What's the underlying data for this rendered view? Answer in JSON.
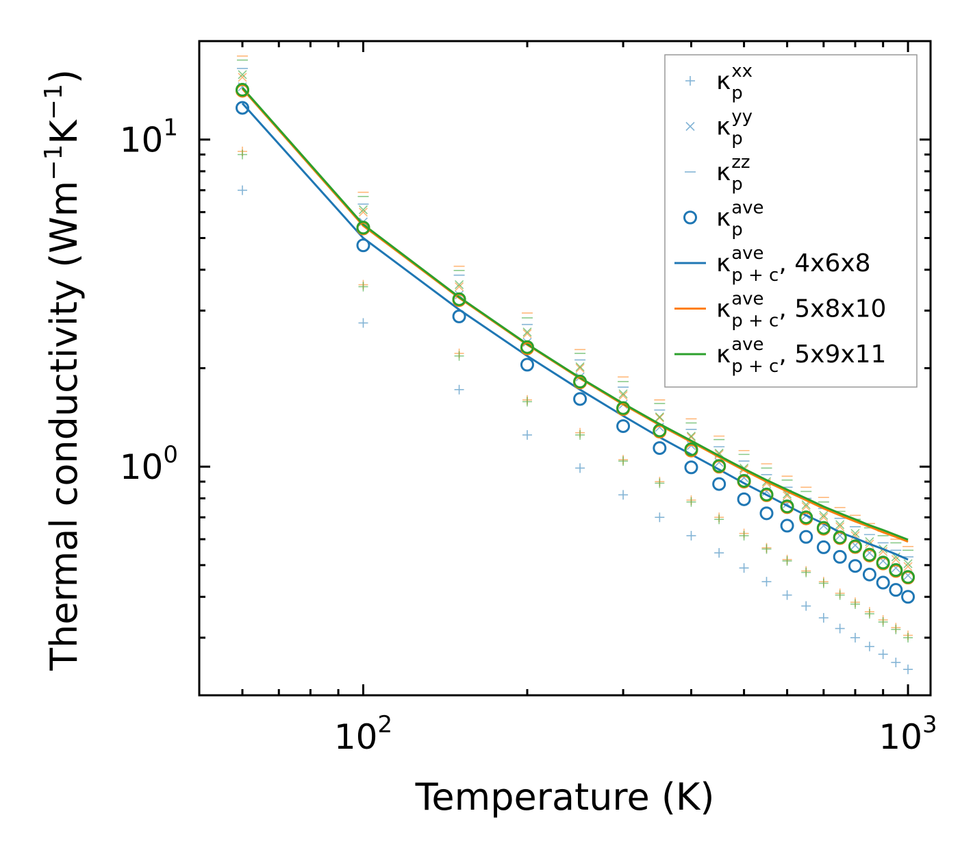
{
  "chart_data": {
    "type": "scatter",
    "title": "",
    "xlabel": "Temperature (K)",
    "ylabel_main": "Thermal conductivity (Wm",
    "ylabel_exp1": "−1",
    "ylabel_mid": "K",
    "ylabel_exp2": "−1",
    "ylabel_close": ")",
    "xscale": "log",
    "yscale": "log",
    "xlim": [
      50,
      1100
    ],
    "ylim": [
      0.2,
      20
    ],
    "xticks": [
      {
        "base": "10",
        "exp": "2",
        "value": 100
      },
      {
        "base": "10",
        "exp": "3",
        "value": 1000
      }
    ],
    "yticks": [
      {
        "base": "10",
        "exp": "0",
        "value": 1
      },
      {
        "base": "10",
        "exp": "1",
        "value": 10
      }
    ],
    "legend_position": "top-right",
    "x": [
      60,
      100,
      150,
      200,
      250,
      300,
      350,
      400,
      450,
      500,
      550,
      600,
      650,
      700,
      750,
      800,
      850,
      900,
      950,
      1000
    ],
    "series": [
      {
        "name": "xx-blue",
        "marker": "+",
        "color": "#1f77b4",
        "values": [
          7.0,
          2.75,
          1.72,
          1.25,
          0.99,
          0.82,
          0.7,
          0.615,
          0.545,
          0.49,
          0.445,
          0.405,
          0.375,
          0.345,
          0.32,
          0.3,
          0.282,
          0.267,
          0.252,
          0.24
        ]
      },
      {
        "name": "xx-orange",
        "marker": "+",
        "color": "#ff7f0e",
        "values": [
          9.2,
          3.6,
          2.22,
          1.6,
          1.27,
          1.05,
          0.9,
          0.79,
          0.7,
          0.625,
          0.565,
          0.52,
          0.48,
          0.445,
          0.41,
          0.385,
          0.36,
          0.34,
          0.322,
          0.305
        ]
      },
      {
        "name": "xx-green",
        "marker": "+",
        "color": "#2ca02c",
        "values": [
          9.0,
          3.55,
          2.18,
          1.58,
          1.25,
          1.04,
          0.89,
          0.78,
          0.69,
          0.615,
          0.56,
          0.515,
          0.475,
          0.44,
          0.405,
          0.38,
          0.355,
          0.335,
          0.318,
          0.3
        ]
      },
      {
        "name": "yy-blue",
        "marker": "x",
        "color": "#1f77b4",
        "values": [
          14.5,
          5.6,
          3.35,
          2.4,
          1.88,
          1.55,
          1.32,
          1.16,
          1.03,
          0.925,
          0.84,
          0.77,
          0.71,
          0.66,
          0.615,
          0.575,
          0.545,
          0.515,
          0.49,
          0.465
        ]
      },
      {
        "name": "yy-orange",
        "marker": "x",
        "color": "#ff7f0e",
        "values": [
          15.5,
          6.0,
          3.55,
          2.55,
          2.0,
          1.65,
          1.41,
          1.23,
          1.09,
          0.98,
          0.89,
          0.815,
          0.755,
          0.7,
          0.655,
          0.615,
          0.58,
          0.55,
          0.52,
          0.495
        ]
      },
      {
        "name": "yy-green",
        "marker": "x",
        "color": "#2ca02c",
        "values": [
          15.8,
          6.1,
          3.6,
          2.58,
          2.02,
          1.67,
          1.42,
          1.24,
          1.1,
          0.99,
          0.9,
          0.825,
          0.765,
          0.71,
          0.665,
          0.625,
          0.59,
          0.56,
          0.53,
          0.505
        ]
      },
      {
        "name": "zz-blue",
        "marker": "_",
        "color": "#1f77b4",
        "values": [
          16.5,
          6.35,
          3.85,
          2.72,
          2.12,
          1.75,
          1.49,
          1.3,
          1.15,
          1.04,
          0.945,
          0.865,
          0.8,
          0.745,
          0.695,
          0.655,
          0.62,
          0.585,
          0.555,
          0.53
        ]
      },
      {
        "name": "zz-orange",
        "marker": "_",
        "color": "#ff7f0e",
        "values": [
          18.0,
          6.9,
          4.1,
          2.95,
          2.28,
          1.88,
          1.6,
          1.4,
          1.24,
          1.12,
          1.02,
          0.935,
          0.865,
          0.805,
          0.75,
          0.71,
          0.67,
          0.635,
          0.6,
          0.57
        ]
      },
      {
        "name": "zz-green",
        "marker": "_",
        "color": "#2ca02c",
        "values": [
          17.5,
          6.7,
          3.98,
          2.85,
          2.22,
          1.82,
          1.56,
          1.36,
          1.21,
          1.09,
          0.99,
          0.91,
          0.84,
          0.78,
          0.73,
          0.69,
          0.65,
          0.615,
          0.585,
          0.555
        ]
      },
      {
        "name": "ave-blue",
        "marker": "o",
        "color": "#1f77b4",
        "values": [
          12.5,
          4.75,
          2.88,
          2.05,
          1.61,
          1.33,
          1.14,
          0.995,
          0.885,
          0.795,
          0.72,
          0.66,
          0.61,
          0.567,
          0.53,
          0.497,
          0.468,
          0.442,
          0.42,
          0.4
        ]
      },
      {
        "name": "ave-orange",
        "marker": "o",
        "color": "#ff7f0e",
        "values": [
          14.1,
          5.35,
          3.23,
          2.3,
          1.81,
          1.5,
          1.28,
          1.12,
          1.0,
          0.9,
          0.818,
          0.752,
          0.695,
          0.646,
          0.605,
          0.568,
          0.535,
          0.506,
          0.48,
          0.458
        ]
      },
      {
        "name": "ave-green",
        "marker": "o",
        "color": "#2ca02c",
        "values": [
          14.2,
          5.38,
          3.25,
          2.32,
          1.82,
          1.51,
          1.29,
          1.13,
          1.005,
          0.905,
          0.822,
          0.756,
          0.7,
          0.65,
          0.608,
          0.571,
          0.538,
          0.509,
          0.483,
          0.46
        ]
      },
      {
        "name": "line 4x6x8",
        "marker": "line",
        "color": "#1f77b4",
        "values": [
          12.9,
          5.0,
          3.02,
          2.18,
          1.72,
          1.43,
          1.23,
          1.09,
          0.98,
          0.89,
          0.82,
          0.76,
          0.71,
          0.67,
          0.63,
          0.605,
          0.58,
          0.56,
          0.54,
          0.52
        ]
      },
      {
        "name": "line 5x8x10",
        "marker": "line",
        "color": "#ff7f0e",
        "values": [
          14.3,
          5.45,
          3.28,
          2.36,
          1.86,
          1.55,
          1.34,
          1.19,
          1.07,
          0.975,
          0.9,
          0.84,
          0.79,
          0.745,
          0.71,
          0.68,
          0.655,
          0.63,
          0.61,
          0.59
        ]
      },
      {
        "name": "line 5x9x11",
        "marker": "line",
        "color": "#2ca02c",
        "values": [
          14.4,
          5.5,
          3.3,
          2.37,
          1.87,
          1.56,
          1.35,
          1.2,
          1.08,
          0.985,
          0.91,
          0.85,
          0.8,
          0.755,
          0.72,
          0.69,
          0.662,
          0.64,
          0.618,
          0.598
        ]
      }
    ],
    "legend": [
      {
        "marker": "+",
        "color": "#1f77b4",
        "base": "κ",
        "sup": "xx",
        "sub": "p",
        "tail": ""
      },
      {
        "marker": "x",
        "color": "#1f77b4",
        "base": "κ",
        "sup": "yy",
        "sub": "p",
        "tail": ""
      },
      {
        "marker": "_",
        "color": "#1f77b4",
        "base": "κ",
        "sup": "zz",
        "sub": "p",
        "tail": ""
      },
      {
        "marker": "o",
        "color": "#1f77b4",
        "base": "κ",
        "sup": "ave",
        "sub": "p",
        "tail": ""
      },
      {
        "marker": "line",
        "color": "#1f77b4",
        "base": "κ",
        "sup": "ave",
        "sub": "p + c",
        "tail": ", 4x6x8"
      },
      {
        "marker": "line",
        "color": "#ff7f0e",
        "base": "κ",
        "sup": "ave",
        "sub": "p + c",
        "tail": ", 5x8x10"
      },
      {
        "marker": "line",
        "color": "#2ca02c",
        "base": "κ",
        "sup": "ave",
        "sub": "p + c",
        "tail": ", 5x9x11"
      }
    ]
  }
}
